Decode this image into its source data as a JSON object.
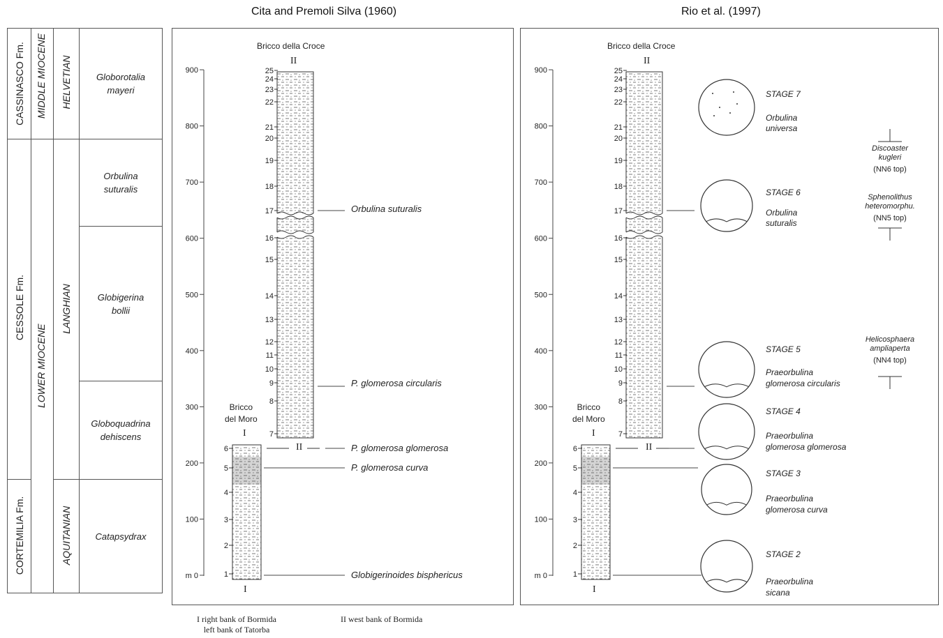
{
  "headers": {
    "left": "Cita and Premoli Silva (1960)",
    "right": "Rio et al. (1997)"
  },
  "formations": [
    "CASSINASCO Fm.",
    "CESSOLE Fm.",
    "CORTEMILIA Fm."
  ],
  "epochs": [
    "MIDDLE MIOCENE",
    "LOWER MIOCENE"
  ],
  "stages": [
    "HELVETIAN",
    "LANGHIAN",
    "AQUITANIAN"
  ],
  "zones": [
    "Globorotalia\nmayeri",
    "Orbulina\nsuturalis",
    "Globigerina\nbollii",
    "Globoquadrina\ndehiscens",
    "Catapsydrax"
  ],
  "sections": {
    "upper": "Bricco della Croce",
    "lower": "Bricco\ndel Moro",
    "upper_mark": "II",
    "lower_mark": "I"
  },
  "scale": {
    "ticks": [
      "900",
      "800",
      "700",
      "600",
      "500",
      "400",
      "300",
      "200",
      "100",
      "m 0"
    ]
  },
  "samples_upper": [
    "25",
    "24",
    "23",
    "22",
    "21",
    "20",
    "19",
    "18",
    "17",
    "16",
    "15",
    "14",
    "13",
    "12",
    "11",
    "10",
    "9",
    "8",
    "7"
  ],
  "samples_lower": [
    "6",
    "5",
    "4",
    "3",
    "2",
    "1"
  ],
  "events_left": [
    "Orbulina suturalis",
    "P. glomerosa circularis",
    "P. glomerosa glomerosa",
    "P. glomerosa curva",
    "Globigerinoides bisphericus"
  ],
  "stage_labels": [
    {
      "stage": "STAGE 7",
      "taxon": "Orbulina\nuniversa"
    },
    {
      "stage": "STAGE 6",
      "taxon": "Orbulina\nsuturalis"
    },
    {
      "stage": "STAGE 5",
      "taxon": "Praeorbulina\nglomerosa circularis"
    },
    {
      "stage": "STAGE 4",
      "taxon": "Praeorbulina\nglomerosa  glomerosa"
    },
    {
      "stage": "STAGE 3",
      "taxon": "Praeorbulina\nglomerosa curva"
    },
    {
      "stage": "STAGE 2",
      "taxon": "Praeorbulina\nsicana"
    }
  ],
  "nannofossils": [
    {
      "name": "Discoaster\nkugleri",
      "note": "(NN6 top)"
    },
    {
      "name": "Sphenolithus\nheteromorphu.",
      "note": "(NN5 top)"
    },
    {
      "name": "Helicosphaera\nampliaperta",
      "note": "(NN4 top)"
    }
  ],
  "footnotes": {
    "one": "I right bank of Bormida\nleft bank of Tatorba",
    "two": "II west bank of Bormida"
  }
}
